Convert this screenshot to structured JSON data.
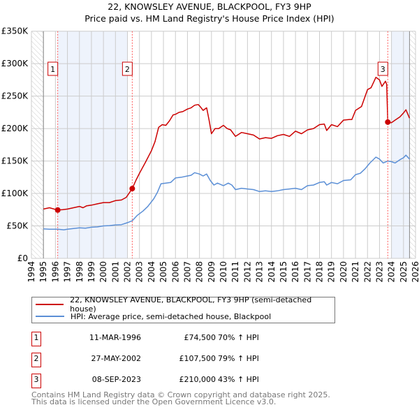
{
  "title_line1": "22, KNOWSLEY AVENUE, BLACKPOOL, FY3 9HP",
  "title_line2": "Price paid vs. HM Land Registry's House Price Index (HPI)",
  "legend": {
    "property": "22, KNOWSLEY AVENUE, BLACKPOOL, FY3 9HP (semi-detached house)",
    "hpi": "HPI: Average price, semi-detached house, Blackpool"
  },
  "sales": [
    {
      "num": "1",
      "date": "11-MAR-1996",
      "price": "£74,500",
      "pct": "70% ↑ HPI"
    },
    {
      "num": "2",
      "date": "27-MAY-2002",
      "price": "£107,500",
      "pct": "79% ↑ HPI"
    },
    {
      "num": "3",
      "date": "08-SEP-2023",
      "price": "£210,000",
      "pct": "43% ↑ HPI"
    }
  ],
  "footer": {
    "line1": "Contains HM Land Registry data © Crown copyright and database right 2025.",
    "line2": "This data is licensed under the Open Government Licence v3.0."
  },
  "colors": {
    "property": "#cc0000",
    "hpi": "#5b8fd6",
    "band": "#eef3fc"
  },
  "chart_data": {
    "type": "line",
    "xlim": [
      1994,
      2026
    ],
    "ylim": [
      0,
      350000
    ],
    "yticks": [
      0,
      50000,
      100000,
      150000,
      200000,
      250000,
      300000,
      350000
    ],
    "ytick_labels": [
      "£0",
      "£50K",
      "£100K",
      "£150K",
      "£200K",
      "£250K",
      "£300K",
      "£350K"
    ],
    "xticks": [
      "1994",
      "1995",
      "1996",
      "1997",
      "1998",
      "1999",
      "2000",
      "2001",
      "2002",
      "2003",
      "2004",
      "2005",
      "2006",
      "2007",
      "2008",
      "2009",
      "2010",
      "2011",
      "2012",
      "2013",
      "2014",
      "2015",
      "2016",
      "2017",
      "2018",
      "2019",
      "2020",
      "2021",
      "2022",
      "2023",
      "2024",
      "2025",
      "2026"
    ],
    "data_range": [
      1995,
      2025.5
    ],
    "shaded_periods": [
      [
        1996.19,
        2002.03
      ],
      [
        2023.96,
        2025.5
      ]
    ],
    "sale_points": [
      {
        "label": "1",
        "x": 1996.19,
        "y": 74500
      },
      {
        "label": "2",
        "x": 2002.4,
        "y": 107500
      },
      {
        "label": "3",
        "x": 2023.69,
        "y": 210000
      }
    ],
    "series": [
      {
        "name": "22, KNOWSLEY AVENUE, BLACKPOOL, FY3 9HP (semi-detached house)",
        "x": [
          1995,
          1995.5,
          1996.19,
          1996.6,
          1997,
          1997.5,
          1998,
          1998.3,
          1998.6,
          1999,
          1999.5,
          2000,
          2000.5,
          2001,
          2001.5,
          2001.9,
          2002.4,
          2002.7,
          2003,
          2003.5,
          2004,
          2004.3,
          2004.6,
          2004.9,
          2005.2,
          2005.5,
          2005.8,
          2006,
          2006.3,
          2006.6,
          2007,
          2007.3,
          2007.6,
          2007.9,
          2008.1,
          2008.3,
          2008.6,
          2008.8,
          2009,
          2009.3,
          2009.6,
          2010,
          2010.3,
          2010.6,
          2011,
          2011.5,
          2012,
          2012.5,
          2013,
          2013.5,
          2014,
          2014.5,
          2015,
          2015.5,
          2016,
          2016.5,
          2017,
          2017.5,
          2018,
          2018.4,
          2018.6,
          2019,
          2019.5,
          2020,
          2020.5,
          2020.7,
          2021,
          2021.5,
          2022,
          2022.3,
          2022.7,
          2023,
          2023.2,
          2023.5,
          2023.6,
          2023.69,
          2024,
          2024.3,
          2024.7,
          2025,
          2025.2,
          2025.5
        ],
        "values": [
          76000,
          78000,
          74500,
          75000,
          76000,
          78000,
          80000,
          78000,
          81000,
          82000,
          84000,
          86000,
          86000,
          89000,
          90000,
          94000,
          107500,
          120000,
          131000,
          148000,
          166000,
          180000,
          202000,
          206000,
          205000,
          212000,
          221000,
          222000,
          225000,
          226000,
          230000,
          232000,
          236000,
          237000,
          233000,
          228000,
          232000,
          213000,
          192000,
          200000,
          200000,
          205000,
          200000,
          198000,
          188000,
          194000,
          192000,
          190000,
          184000,
          186000,
          185000,
          189000,
          191000,
          188000,
          196000,
          192000,
          198000,
          200000,
          206000,
          207000,
          197000,
          206000,
          203000,
          213000,
          214000,
          214000,
          228000,
          234000,
          260000,
          263000,
          279000,
          275000,
          265000,
          273000,
          268000,
          210000,
          209000,
          213000,
          218000,
          224000,
          229000,
          216000
        ]
      },
      {
        "name": "HPI: Average price, semi-detached house, Blackpool",
        "x": [
          1995,
          1995.5,
          1996.19,
          1996.7,
          1997,
          1997.5,
          1998,
          1998.5,
          1999,
          1999.5,
          2000,
          2000.5,
          2001,
          2001.5,
          2002,
          2002.4,
          2002.8,
          2003.3,
          2003.7,
          2004.2,
          2004.5,
          2004.8,
          2005.2,
          2005.6,
          2006,
          2006.5,
          2007,
          2007.3,
          2007.6,
          2008,
          2008.3,
          2008.6,
          2008.9,
          2009.2,
          2009.5,
          2010,
          2010.4,
          2010.7,
          2011,
          2011.5,
          2012,
          2012.5,
          2013,
          2013.5,
          2014,
          2014.5,
          2015,
          2015.5,
          2016,
          2016.5,
          2017,
          2017.5,
          2018,
          2018.4,
          2018.6,
          2019,
          2019.5,
          2020,
          2020.6,
          2021,
          2021.4,
          2021.8,
          2022.2,
          2022.7,
          2023,
          2023.3,
          2023.7,
          2024,
          2024.3,
          2024.7,
          2025,
          2025.2,
          2025.5
        ],
        "values": [
          45500,
          45000,
          45000,
          44000,
          45000,
          46000,
          47000,
          46500,
          48000,
          48500,
          50000,
          50500,
          51500,
          52000,
          55000,
          58000,
          66000,
          73000,
          80000,
          92000,
          102000,
          115000,
          116000,
          117000,
          124000,
          125000,
          127000,
          128000,
          132000,
          130000,
          127000,
          130000,
          120000,
          113000,
          116000,
          112000,
          116000,
          113000,
          106000,
          108000,
          107000,
          106000,
          103000,
          104000,
          103000,
          104000,
          106000,
          107000,
          108000,
          106000,
          112000,
          113000,
          117000,
          118000,
          113000,
          117000,
          115000,
          120000,
          121000,
          129000,
          131000,
          138000,
          147000,
          156000,
          153000,
          147000,
          150000,
          149000,
          147000,
          152000,
          155000,
          159000,
          153000
        ]
      }
    ]
  }
}
